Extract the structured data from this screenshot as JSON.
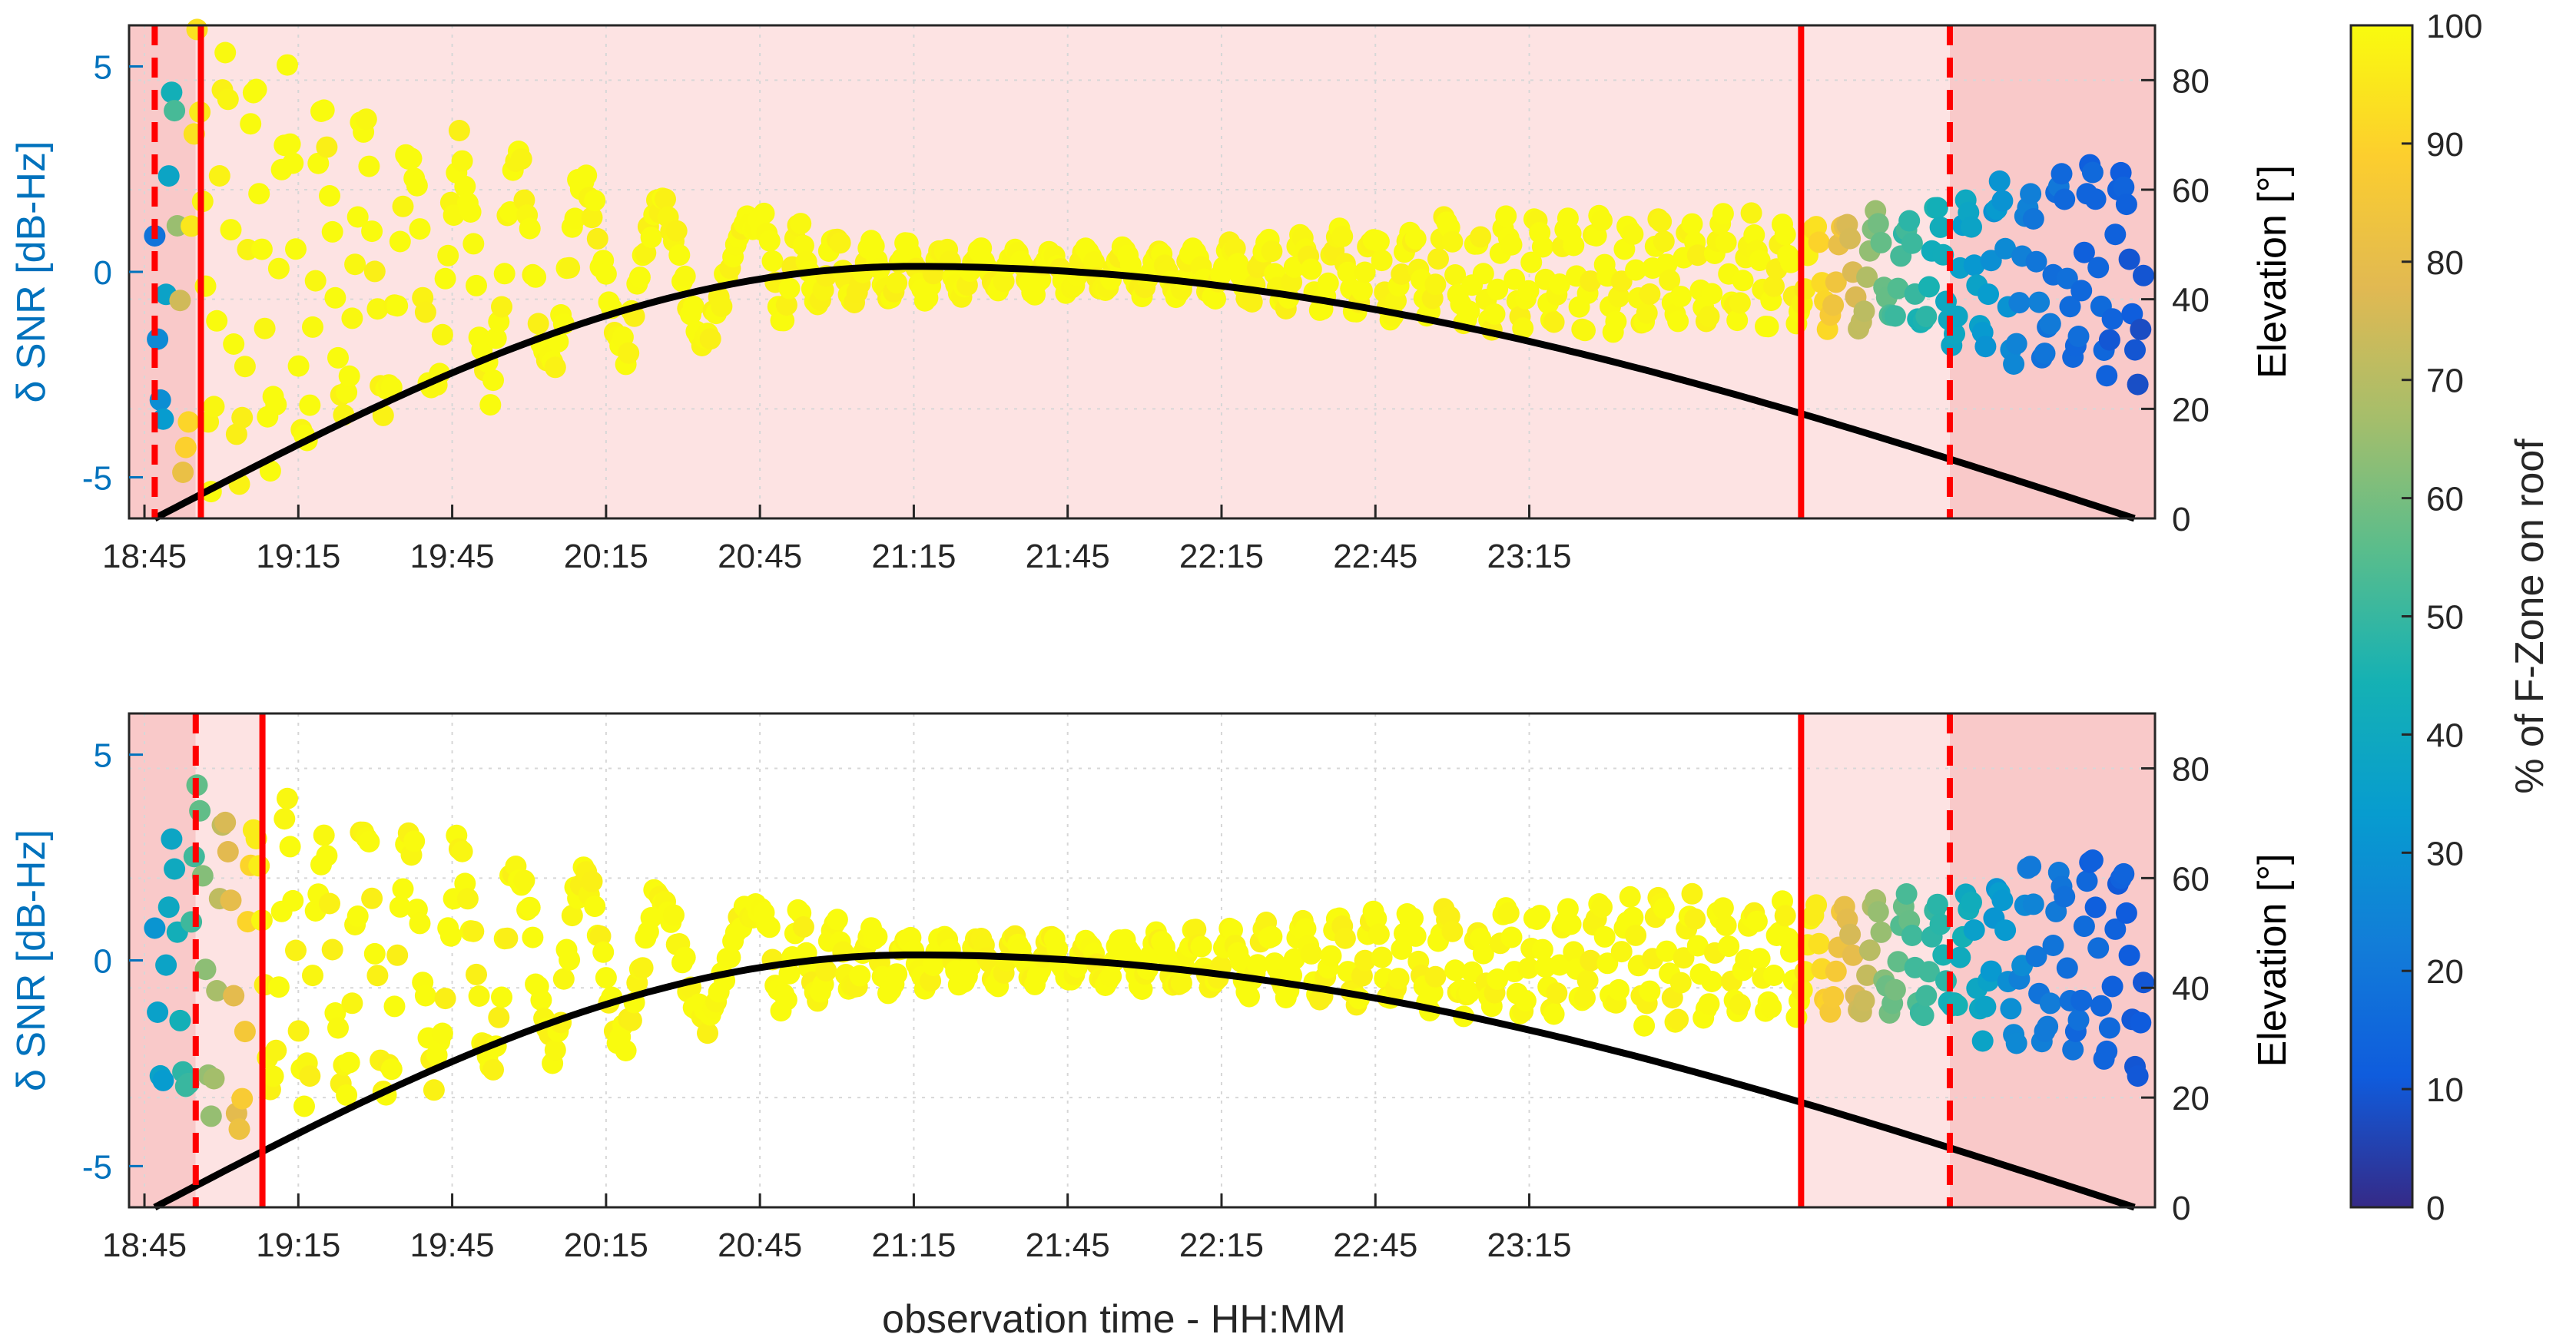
{
  "chart_data": {
    "type": "scatter",
    "xlabel": "observation time - HH:MM",
    "x_ticks": [
      "18:45",
      "19:15",
      "19:45",
      "20:15",
      "20:45",
      "21:15",
      "21:45",
      "22:15",
      "22:45",
      "23:15"
    ],
    "x_range_minutes": [
      -3,
      392
    ],
    "x_tick_start_minutes": 0,
    "x_tick_step_minutes": 30,
    "colorbar": {
      "label": "% of F-Zone on roof",
      "range": [
        0,
        100
      ],
      "ticks": [
        "0",
        "10",
        "20",
        "30",
        "40",
        "50",
        "60",
        "70",
        "80",
        "90",
        "100"
      ],
      "colormap": "parula"
    },
    "panels": [
      {
        "name": "top",
        "ylabel_left": "δ SNR [dB-Hz]",
        "ylabel_right": "Elevation [°]",
        "ylim_left": [
          -6,
          6
        ],
        "ylim_right": [
          0,
          90
        ],
        "yticks_left": [
          "5",
          "0",
          "-5"
        ],
        "yticks_right": [
          "80",
          "60",
          "40",
          "20",
          "0"
        ],
        "solid_lines_minutes": [
          11,
          323
        ],
        "dashed_lines_minutes": [
          2,
          352
        ],
        "light_band_minutes": [
          [
            10,
            323
          ],
          [
            323,
            352
          ]
        ],
        "dark_band_minutes": [
          [
            -3,
            10
          ],
          [
            352,
            392
          ]
        ],
        "elevation_curve": {
          "start_minute": 2,
          "end_minute": 388,
          "peak_minute": 150,
          "peak_deg": 46
        },
        "snr_envelope": [
          [
            2,
            3.2
          ],
          [
            6,
            4.2
          ],
          [
            10,
            5.5
          ],
          [
            20,
            4.5
          ],
          [
            45,
            3.3
          ],
          [
            75,
            2.5
          ],
          [
            105,
            1.6
          ],
          [
            135,
            0.8
          ],
          [
            165,
            0.5
          ],
          [
            195,
            0.5
          ],
          [
            225,
            0.8
          ],
          [
            255,
            1.2
          ],
          [
            285,
            1.3
          ],
          [
            315,
            1.2
          ],
          [
            345,
            1.3
          ],
          [
            375,
            2.3
          ],
          [
            390,
            2.5
          ]
        ],
        "color_profile": [
          [
            -3,
            30
          ],
          [
            2,
            20
          ],
          [
            5,
            40
          ],
          [
            8,
            90
          ],
          [
            12,
            100
          ],
          [
            323,
            100
          ],
          [
            330,
            85
          ],
          [
            340,
            55
          ],
          [
            352,
            40
          ],
          [
            370,
            20
          ],
          [
            392,
            8
          ]
        ]
      },
      {
        "name": "bottom",
        "ylabel_left": "δ SNR [dB-Hz]",
        "ylabel_right": "Elevation [°]",
        "ylim_left": [
          -6,
          6
        ],
        "ylim_right": [
          0,
          90
        ],
        "yticks_left": [
          "5",
          "0",
          "-5"
        ],
        "yticks_right": [
          "80",
          "60",
          "40",
          "20",
          "0"
        ],
        "solid_lines_minutes": [
          23,
          323
        ],
        "dashed_lines_minutes": [
          10,
          352
        ],
        "light_band_minutes": [
          [
            10,
            23
          ],
          [
            323,
            352
          ]
        ],
        "dark_band_minutes": [
          [
            -3,
            10
          ],
          [
            352,
            392
          ]
        ],
        "elevation_curve": {
          "start_minute": 2,
          "end_minute": 388,
          "peak_minute": 150,
          "peak_deg": 46
        },
        "snr_envelope": [
          [
            2,
            2.5
          ],
          [
            10,
            4.0
          ],
          [
            18,
            3.6
          ],
          [
            30,
            3.2
          ],
          [
            60,
            2.8
          ],
          [
            90,
            2.0
          ],
          [
            120,
            1.2
          ],
          [
            150,
            0.6
          ],
          [
            180,
            0.5
          ],
          [
            210,
            0.7
          ],
          [
            240,
            1.0
          ],
          [
            270,
            1.2
          ],
          [
            300,
            1.4
          ],
          [
            330,
            1.2
          ],
          [
            352,
            1.4
          ],
          [
            375,
            2.2
          ],
          [
            390,
            2.5
          ]
        ],
        "color_profile": [
          [
            -3,
            30
          ],
          [
            4,
            35
          ],
          [
            10,
            55
          ],
          [
            16,
            75
          ],
          [
            23,
            100
          ],
          [
            323,
            100
          ],
          [
            330,
            85
          ],
          [
            340,
            60
          ],
          [
            352,
            45
          ],
          [
            370,
            20
          ],
          [
            392,
            8
          ]
        ]
      }
    ]
  }
}
